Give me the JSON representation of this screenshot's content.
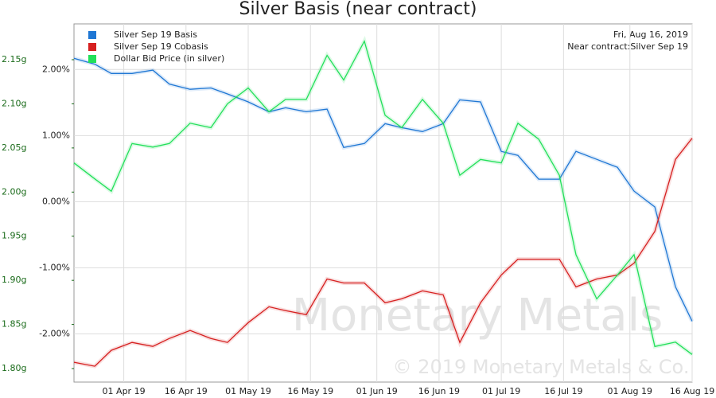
{
  "chart_data": {
    "type": "line",
    "title": "Silver Basis (near contract)",
    "annotations": [
      "Fri, Aug 16, 2019",
      "Near contract:Silver Sep 19"
    ],
    "watermark": [
      "Monetary Metals",
      "© 2019 Monetary Metals & Co."
    ],
    "x": [
      "2019-03-20",
      "2019-03-25",
      "2019-03-29",
      "2019-04-03",
      "2019-04-08",
      "2019-04-12",
      "2019-04-17",
      "2019-04-22",
      "2019-04-26",
      "2019-05-01",
      "2019-05-06",
      "2019-05-10",
      "2019-05-15",
      "2019-05-20",
      "2019-05-24",
      "2019-05-29",
      "2019-06-03",
      "2019-06-07",
      "2019-06-12",
      "2019-06-17",
      "2019-06-21",
      "2019-06-26",
      "2019-07-01",
      "2019-07-05",
      "2019-07-10",
      "2019-07-15",
      "2019-07-19",
      "2019-07-24",
      "2019-07-29",
      "2019-08-02",
      "2019-08-07",
      "2019-08-12",
      "2019-08-16"
    ],
    "xlim": [
      "2019-03-20",
      "2019-08-16"
    ],
    "xticks": [
      {
        "value": "2019-04-01",
        "label": "01 Apr 19"
      },
      {
        "value": "2019-04-16",
        "label": "16 Apr 19"
      },
      {
        "value": "2019-05-01",
        "label": "01 May 19"
      },
      {
        "value": "2019-05-16",
        "label": "16 May 19"
      },
      {
        "value": "2019-06-01",
        "label": "01 Jun 19"
      },
      {
        "value": "2019-06-16",
        "label": "16 Jun 19"
      },
      {
        "value": "2019-07-01",
        "label": "01 Jul 19"
      },
      {
        "value": "2019-07-16",
        "label": "16 Jul 19"
      },
      {
        "value": "2019-08-01",
        "label": "01 Aug 19"
      },
      {
        "value": "2019-08-16",
        "label": "16 Aug 19"
      }
    ],
    "ylim": [
      1.7847,
      2.1906
    ],
    "yticks": [
      {
        "value": 1.8,
        "label": "1.80g"
      },
      {
        "value": 1.85,
        "label": "1.85g"
      },
      {
        "value": 1.9,
        "label": "1.90g"
      },
      {
        "value": 1.95,
        "label": "1.95g"
      },
      {
        "value": 2.0,
        "label": "2.00g"
      },
      {
        "value": 2.05,
        "label": "2.05g"
      },
      {
        "value": 2.1,
        "label": "2.10g"
      },
      {
        "value": 2.15,
        "label": "2.15g"
      }
    ],
    "y2lim": [
      -2.73,
      2.69
    ],
    "y2ticks": [
      {
        "value": -2,
        "label": "-2.00%"
      },
      {
        "value": -1,
        "label": "-1.00%"
      },
      {
        "value": 0,
        "label": "0.00%"
      },
      {
        "value": 1,
        "label": "1.00%"
      },
      {
        "value": 2,
        "label": "2.00%"
      }
    ],
    "grid": true,
    "legend": "top-left",
    "series": [
      {
        "name": "Silver Sep 19 Basis",
        "color": "#1f77d4",
        "axis": "y2",
        "values": [
          2.17,
          2.08,
          1.94,
          1.94,
          1.99,
          1.78,
          1.7,
          1.72,
          1.63,
          1.51,
          1.36,
          1.42,
          1.36,
          1.4,
          0.82,
          0.88,
          1.18,
          1.12,
          1.06,
          1.18,
          1.54,
          1.51,
          0.76,
          0.7,
          0.34,
          0.34,
          0.76,
          0.64,
          0.52,
          0.16,
          -0.08,
          -1.29,
          -1.81
        ]
      },
      {
        "name": "Silver Sep 19 Cobasis",
        "color": "#d62020",
        "axis": "y2",
        "values": [
          -2.43,
          -2.49,
          -2.25,
          -2.13,
          -2.19,
          -2.07,
          -1.95,
          -2.07,
          -2.13,
          -1.83,
          -1.59,
          -1.65,
          -1.71,
          -1.17,
          -1.23,
          -1.23,
          -1.53,
          -1.47,
          -1.35,
          -1.41,
          -2.13,
          -1.53,
          -1.11,
          -0.87,
          -0.87,
          -0.87,
          -1.29,
          -1.17,
          -1.11,
          -0.93,
          -0.45,
          0.64,
          0.96
        ]
      },
      {
        "name": "Dollar Bid Price (in silver)",
        "color": "#22e05a",
        "values": [
          2.033,
          2.015,
          2.001,
          2.055,
          2.051,
          2.055,
          2.078,
          2.073,
          2.1,
          2.118,
          2.091,
          2.105,
          2.105,
          2.155,
          2.127,
          2.171,
          2.087,
          2.073,
          2.105,
          2.078,
          2.019,
          2.037,
          2.033,
          2.078,
          2.06,
          2.019,
          1.929,
          1.879,
          1.906,
          1.929,
          1.825,
          1.83,
          1.816
        ]
      }
    ]
  }
}
